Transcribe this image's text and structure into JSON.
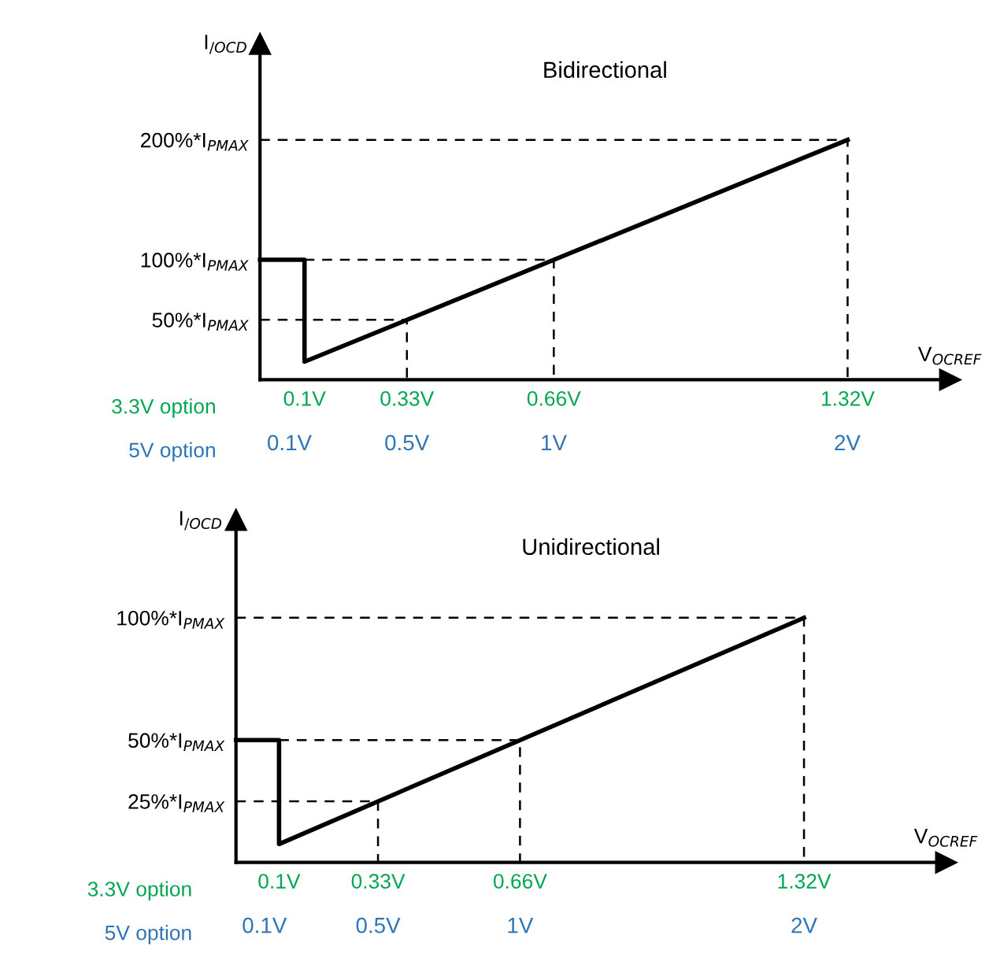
{
  "chart_data": [
    {
      "type": "line",
      "title": "Bidirectional",
      "xlabel": "V$_{OCREF}$",
      "ylabel": "I$_{/OCD}$",
      "xlim": [
        0,
        1.55
      ],
      "ylim": [
        0,
        280
      ],
      "xticks": [
        {
          "value": 0.1,
          "label": "0.1V"
        },
        {
          "value": 0.33,
          "label": "0.33V"
        },
        {
          "value": 0.66,
          "label": "0.66V"
        },
        {
          "value": 1.32,
          "label": "1.32V"
        }
      ],
      "x2lim": [
        0,
        2.35
      ],
      "x2ticks": [
        {
          "value": 0.1,
          "label": "0.1V"
        },
        {
          "value": 0.5,
          "label": "0.5V"
        },
        {
          "value": 1,
          "label": "1V"
        },
        {
          "value": 2,
          "label": "2V"
        }
      ],
      "yticks": [
        {
          "value": 50,
          "label": "50%*I$_{PMAX}$"
        },
        {
          "value": 100,
          "label": "100%*I$_{PMAX}$"
        },
        {
          "value": 200,
          "label": "200%*I$_{PMAX}$"
        }
      ],
      "annotations": [
        "3.3V option",
        "5V option"
      ],
      "grid": false,
      "legend": false,
      "marker": "none",
      "series": [
        {
          "color": "#000000",
          "x": [
            0,
            0.1,
            0.1,
            1.32
          ],
          "values": [
            100,
            100,
            15,
            200
          ],
          "line_style": "solid"
        },
        {
          "color": "#000000",
          "x": [
            0,
            0.33,
            0.33
          ],
          "values": [
            50,
            50,
            0
          ],
          "line_style": "dashed"
        },
        {
          "color": "#000000",
          "x": [
            0.1,
            0.66,
            0.66
          ],
          "values": [
            100,
            100,
            0
          ],
          "line_style": "dashed"
        },
        {
          "color": "#000000",
          "x": [
            0,
            1.32,
            1.32
          ],
          "values": [
            200,
            200,
            0
          ],
          "line_style": "dashed"
        }
      ]
    },
    {
      "type": "line",
      "title": "Unidirectional",
      "xlabel": "V$_{OCREF}$",
      "ylabel": "I$_{/OCD}$",
      "xlim": [
        0,
        1.65
      ],
      "ylim": [
        0,
        140
      ],
      "xticks": [
        {
          "value": 0.1,
          "label": "0.1V"
        },
        {
          "value": 0.33,
          "label": "0.33V"
        },
        {
          "value": 0.66,
          "label": "0.66V"
        },
        {
          "value": 1.32,
          "label": "1.32V"
        }
      ],
      "x2lim": [
        0,
        2.5
      ],
      "x2ticks": [
        {
          "value": 0.1,
          "label": "0.1V"
        },
        {
          "value": 0.5,
          "label": "0.5V"
        },
        {
          "value": 1,
          "label": "1V"
        },
        {
          "value": 2,
          "label": "2V"
        }
      ],
      "yticks": [
        {
          "value": 25,
          "label": "25%*I$_{PMAX}$"
        },
        {
          "value": 50,
          "label": "50%*I$_{PMAX}$"
        },
        {
          "value": 100,
          "label": "100%*I$_{PMAX}$"
        }
      ],
      "annotations": [
        "3.3V option",
        "5V option"
      ],
      "grid": false,
      "legend": false,
      "marker": "none",
      "series": [
        {
          "color": "#000000",
          "x": [
            0,
            0.1,
            0.1,
            1.32
          ],
          "values": [
            50,
            50,
            7.5,
            100
          ],
          "line_style": "solid"
        },
        {
          "color": "#000000",
          "x": [
            0,
            0.33,
            0.33
          ],
          "values": [
            25,
            25,
            0
          ],
          "line_style": "dashed"
        },
        {
          "color": "#000000",
          "x": [
            0.1,
            0.66,
            0.66
          ],
          "values": [
            50,
            50,
            0
          ],
          "line_style": "dashed"
        },
        {
          "color": "#000000",
          "x": [
            0,
            1.32,
            1.32
          ],
          "values": [
            100,
            100,
            0
          ],
          "line_style": "dashed"
        }
      ]
    }
  ]
}
